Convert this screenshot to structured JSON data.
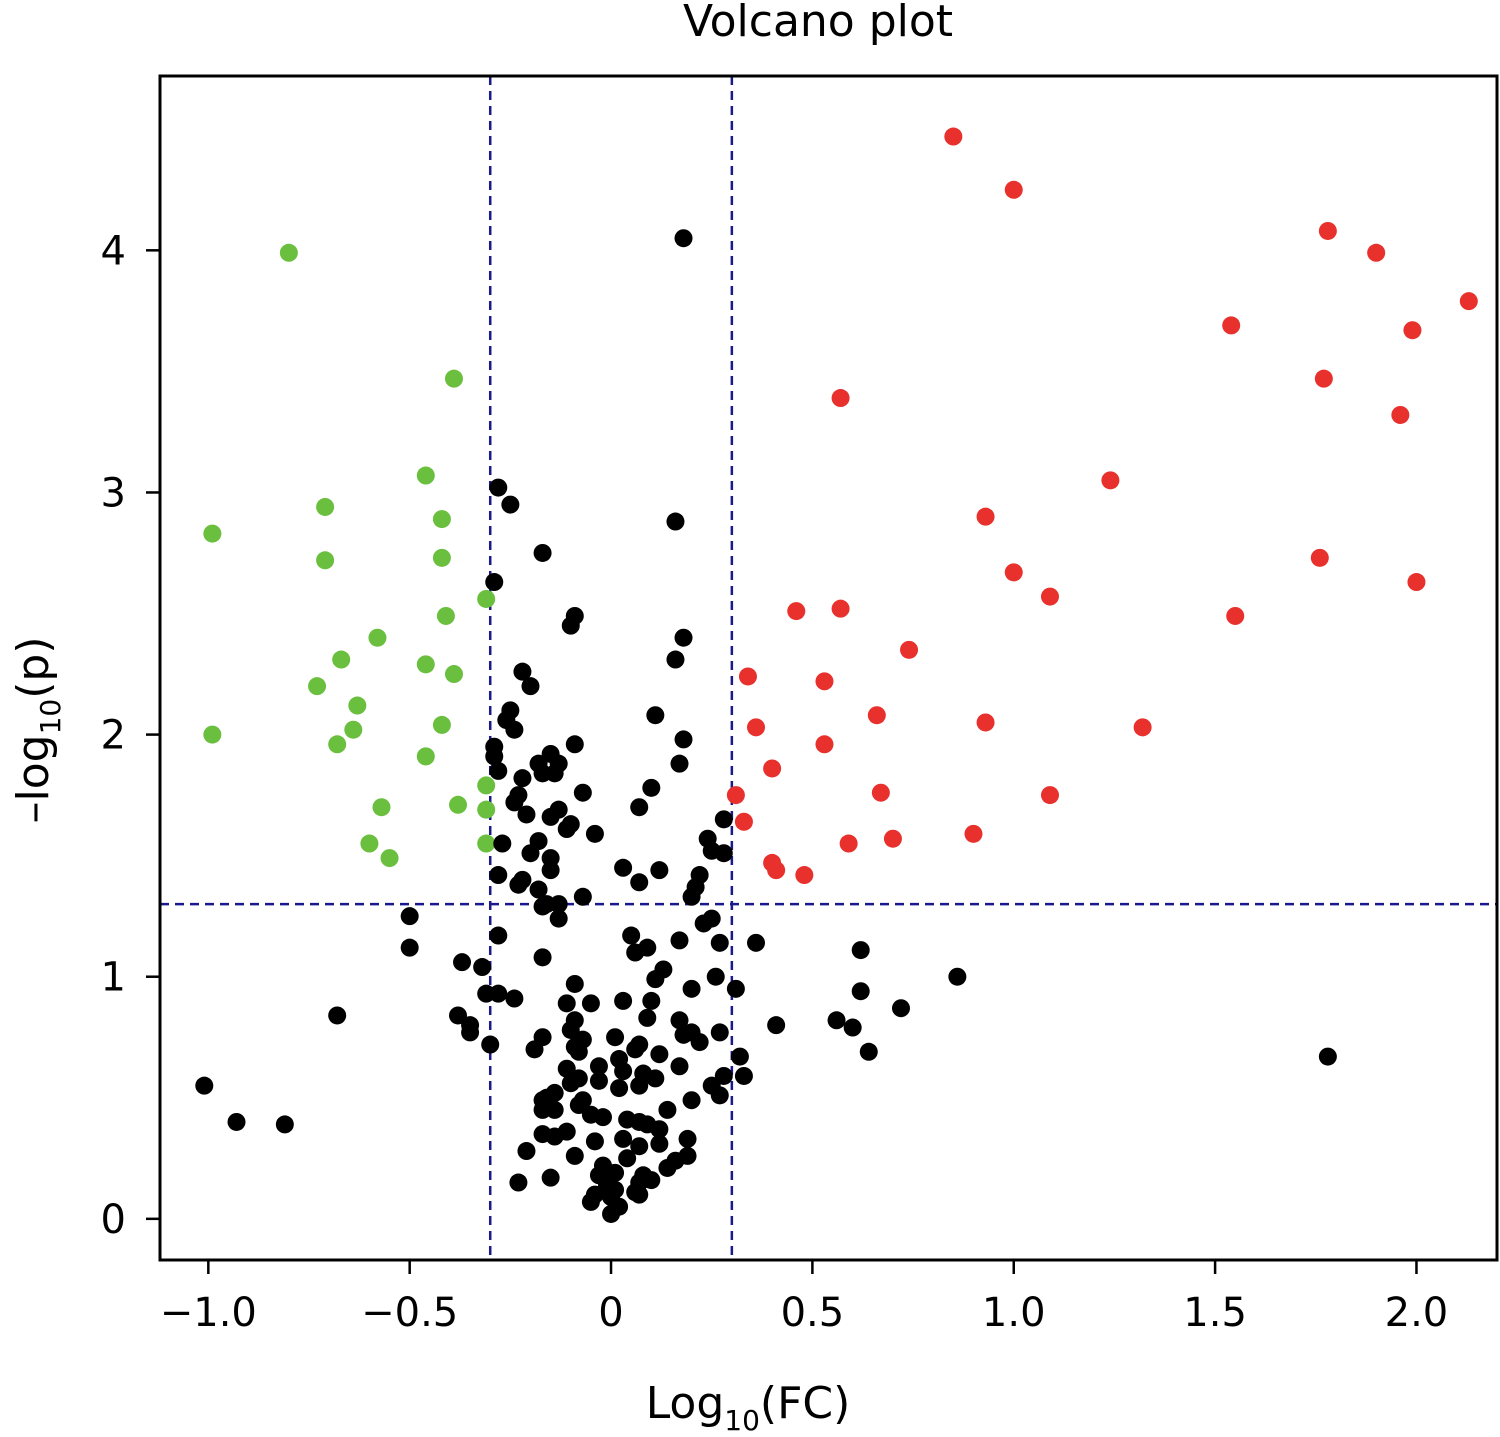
{
  "chart_data": {
    "type": "scatter",
    "title": "Volcano plot",
    "xlabel": {
      "prefix": "Log",
      "sub": "10",
      "suffix": "(FC)"
    },
    "ylabel": {
      "prefix": "–log",
      "sub": "10",
      "suffix": "(p)"
    },
    "xlim": [
      -1.12,
      2.2
    ],
    "ylim": [
      -0.17,
      4.72
    ],
    "xticks": [
      -1.0,
      -0.5,
      0,
      0.5,
      1.0,
      1.5,
      2.0
    ],
    "xtick_labels": [
      "−1.0",
      "−0.5",
      "0",
      "0.5",
      "1.0",
      "1.5",
      "2.0"
    ],
    "yticks": [
      0,
      1,
      2,
      3,
      4
    ],
    "ytick_labels": [
      "0",
      "1",
      "2",
      "3",
      "4"
    ],
    "grid": false,
    "thresholds": {
      "x": [
        -0.3,
        0.3
      ],
      "y": 1.3,
      "color": "#1a1a8c"
    },
    "series": [
      {
        "color": "#6abf3f",
        "points": [
          [
            -0.8,
            3.99
          ],
          [
            -0.39,
            3.47
          ],
          [
            -0.46,
            3.07
          ],
          [
            -0.99,
            2.83
          ],
          [
            -0.71,
            2.94
          ],
          [
            -0.42,
            2.89
          ],
          [
            -0.71,
            2.72
          ],
          [
            -0.42,
            2.73
          ],
          [
            -0.31,
            2.56
          ],
          [
            -0.41,
            2.49
          ],
          [
            -0.58,
            2.4
          ],
          [
            -0.67,
            2.31
          ],
          [
            -0.46,
            2.29
          ],
          [
            -0.39,
            2.25
          ],
          [
            -0.73,
            2.2
          ],
          [
            -0.63,
            2.12
          ],
          [
            -0.64,
            2.02
          ],
          [
            -0.42,
            2.04
          ],
          [
            -0.99,
            2.0
          ],
          [
            -0.68,
            1.96
          ],
          [
            -0.46,
            1.91
          ],
          [
            -0.31,
            1.79
          ],
          [
            -0.38,
            1.71
          ],
          [
            -0.31,
            1.69
          ],
          [
            -0.57,
            1.7
          ],
          [
            -0.6,
            1.55
          ],
          [
            -0.31,
            1.55
          ],
          [
            -0.55,
            1.49
          ]
        ]
      },
      {
        "color": "#e8302c",
        "points": [
          [
            0.85,
            4.47
          ],
          [
            1.0,
            4.25
          ],
          [
            1.78,
            4.08
          ],
          [
            1.9,
            3.99
          ],
          [
            2.13,
            3.79
          ],
          [
            1.54,
            3.69
          ],
          [
            1.99,
            3.67
          ],
          [
            1.77,
            3.47
          ],
          [
            0.57,
            3.39
          ],
          [
            1.96,
            3.32
          ],
          [
            1.24,
            3.05
          ],
          [
            0.93,
            2.9
          ],
          [
            1.76,
            2.73
          ],
          [
            1.0,
            2.67
          ],
          [
            2.0,
            2.63
          ],
          [
            1.09,
            2.57
          ],
          [
            0.46,
            2.51
          ],
          [
            0.57,
            2.52
          ],
          [
            1.55,
            2.49
          ],
          [
            0.74,
            2.35
          ],
          [
            0.34,
            2.24
          ],
          [
            0.53,
            2.22
          ],
          [
            0.66,
            2.08
          ],
          [
            0.36,
            2.03
          ],
          [
            0.93,
            2.05
          ],
          [
            1.32,
            2.03
          ],
          [
            0.53,
            1.96
          ],
          [
            0.4,
            1.86
          ],
          [
            0.31,
            1.75
          ],
          [
            0.67,
            1.76
          ],
          [
            1.09,
            1.75
          ],
          [
            0.33,
            1.64
          ],
          [
            0.9,
            1.59
          ],
          [
            0.7,
            1.57
          ],
          [
            0.59,
            1.55
          ],
          [
            0.4,
            1.47
          ],
          [
            0.41,
            1.44
          ],
          [
            0.48,
            1.42
          ]
        ]
      },
      {
        "color": "#000000",
        "points": [
          [
            0.18,
            4.05
          ],
          [
            -0.28,
            3.02
          ],
          [
            -0.25,
            2.95
          ],
          [
            0.16,
            2.88
          ],
          [
            -0.17,
            2.75
          ],
          [
            -0.29,
            2.63
          ],
          [
            -0.09,
            2.49
          ],
          [
            -0.1,
            2.45
          ],
          [
            0.18,
            2.4
          ],
          [
            0.16,
            2.31
          ],
          [
            -0.22,
            2.26
          ],
          [
            -0.2,
            2.2
          ],
          [
            -0.25,
            2.1
          ],
          [
            -0.26,
            2.06
          ],
          [
            0.11,
            2.08
          ],
          [
            -0.24,
            2.02
          ],
          [
            0.18,
            1.98
          ],
          [
            -0.09,
            1.96
          ],
          [
            -0.29,
            1.95
          ],
          [
            -0.29,
            1.91
          ],
          [
            -0.15,
            1.92
          ],
          [
            0.17,
            1.88
          ],
          [
            -0.18,
            1.88
          ],
          [
            -0.13,
            1.88
          ],
          [
            -0.17,
            1.84
          ],
          [
            -0.14,
            1.84
          ],
          [
            -0.28,
            1.85
          ],
          [
            -0.22,
            1.82
          ],
          [
            0.1,
            1.78
          ],
          [
            -0.07,
            1.76
          ],
          [
            -0.23,
            1.75
          ],
          [
            -0.24,
            1.72
          ],
          [
            0.07,
            1.7
          ],
          [
            -0.13,
            1.69
          ],
          [
            -0.15,
            1.66
          ],
          [
            0.28,
            1.65
          ],
          [
            -0.1,
            1.63
          ],
          [
            -0.21,
            1.67
          ],
          [
            -0.11,
            1.61
          ],
          [
            0.24,
            1.57
          ],
          [
            -0.04,
            1.59
          ],
          [
            -0.18,
            1.56
          ],
          [
            -0.27,
            1.55
          ],
          [
            -0.2,
            1.51
          ],
          [
            0.25,
            1.52
          ],
          [
            0.28,
            1.51
          ],
          [
            -0.15,
            1.49
          ],
          [
            -0.15,
            1.44
          ],
          [
            0.03,
            1.45
          ],
          [
            0.12,
            1.44
          ],
          [
            -0.28,
            1.42
          ],
          [
            0.22,
            1.42
          ],
          [
            -0.23,
            1.38
          ],
          [
            -0.22,
            1.4
          ],
          [
            0.07,
            1.39
          ],
          [
            0.21,
            1.37
          ],
          [
            -0.18,
            1.36
          ],
          [
            -0.07,
            1.33
          ],
          [
            0.2,
            1.33
          ],
          [
            -0.16,
            1.3
          ],
          [
            -0.17,
            1.29
          ],
          [
            -0.13,
            1.3
          ],
          [
            0.25,
            1.24
          ],
          [
            0.23,
            1.22
          ],
          [
            -0.13,
            1.24
          ],
          [
            -0.5,
            1.25
          ],
          [
            0.05,
            1.17
          ],
          [
            -0.28,
            1.17
          ],
          [
            0.17,
            1.15
          ],
          [
            0.27,
            1.14
          ],
          [
            0.36,
            1.14
          ],
          [
            0.09,
            1.12
          ],
          [
            -0.5,
            1.12
          ],
          [
            0.06,
            1.1
          ],
          [
            0.62,
            1.11
          ],
          [
            -0.17,
            1.08
          ],
          [
            -0.37,
            1.06
          ],
          [
            -0.32,
            1.04
          ],
          [
            0.13,
            1.03
          ],
          [
            0.26,
            1.0
          ],
          [
            0.11,
            0.99
          ],
          [
            0.86,
            1.0
          ],
          [
            -0.09,
            0.97
          ],
          [
            0.2,
            0.95
          ],
          [
            0.31,
            0.95
          ],
          [
            0.62,
            0.94
          ],
          [
            -0.31,
            0.93
          ],
          [
            -0.28,
            0.93
          ],
          [
            -0.24,
            0.91
          ],
          [
            0.03,
            0.9
          ],
          [
            0.1,
            0.9
          ],
          [
            -0.05,
            0.89
          ],
          [
            -0.11,
            0.89
          ],
          [
            0.72,
            0.87
          ],
          [
            -0.68,
            0.84
          ],
          [
            -0.38,
            0.84
          ],
          [
            0.09,
            0.83
          ],
          [
            0.17,
            0.82
          ],
          [
            0.56,
            0.82
          ],
          [
            -0.09,
            0.82
          ],
          [
            0.41,
            0.8
          ],
          [
            0.6,
            0.79
          ],
          [
            -0.35,
            0.8
          ],
          [
            -0.1,
            0.78
          ],
          [
            0.2,
            0.77
          ],
          [
            0.27,
            0.77
          ],
          [
            0.18,
            0.76
          ],
          [
            -0.17,
            0.75
          ],
          [
            0.01,
            0.75
          ],
          [
            -0.35,
            0.77
          ],
          [
            0.22,
            0.73
          ],
          [
            -0.07,
            0.74
          ],
          [
            0.07,
            0.72
          ],
          [
            -0.3,
            0.72
          ],
          [
            0.06,
            0.7
          ],
          [
            -0.09,
            0.71
          ],
          [
            -0.19,
            0.7
          ],
          [
            0.12,
            0.68
          ],
          [
            0.64,
            0.69
          ],
          [
            -0.08,
            0.69
          ],
          [
            1.78,
            0.67
          ],
          [
            0.32,
            0.67
          ],
          [
            0.02,
            0.66
          ],
          [
            -0.03,
            0.63
          ],
          [
            0.17,
            0.63
          ],
          [
            0.03,
            0.61
          ],
          [
            -0.11,
            0.62
          ],
          [
            0.08,
            0.6
          ],
          [
            0.28,
            0.59
          ],
          [
            0.33,
            0.59
          ],
          [
            -0.08,
            0.58
          ],
          [
            0.11,
            0.58
          ],
          [
            -0.03,
            0.57
          ],
          [
            -0.1,
            0.56
          ],
          [
            0.07,
            0.55
          ],
          [
            0.25,
            0.55
          ],
          [
            0.02,
            0.54
          ],
          [
            -1.01,
            0.55
          ],
          [
            -0.14,
            0.52
          ],
          [
            -0.16,
            0.5
          ],
          [
            0.27,
            0.51
          ],
          [
            -0.07,
            0.49
          ],
          [
            -0.17,
            0.49
          ],
          [
            0.2,
            0.49
          ],
          [
            -0.08,
            0.47
          ],
          [
            -0.17,
            0.45
          ],
          [
            -0.14,
            0.45
          ],
          [
            0.14,
            0.45
          ],
          [
            -0.05,
            0.43
          ],
          [
            -0.02,
            0.42
          ],
          [
            0.04,
            0.41
          ],
          [
            0.07,
            0.4
          ],
          [
            0.09,
            0.39
          ],
          [
            -0.93,
            0.4
          ],
          [
            -0.81,
            0.39
          ],
          [
            0.12,
            0.37
          ],
          [
            -0.11,
            0.36
          ],
          [
            -0.17,
            0.35
          ],
          [
            -0.14,
            0.34
          ],
          [
            0.03,
            0.33
          ],
          [
            -0.04,
            0.32
          ],
          [
            0.19,
            0.33
          ],
          [
            0.07,
            0.3
          ],
          [
            0.12,
            0.31
          ],
          [
            -0.21,
            0.28
          ],
          [
            0.19,
            0.26
          ],
          [
            -0.09,
            0.26
          ],
          [
            0.04,
            0.25
          ],
          [
            0.16,
            0.24
          ],
          [
            -0.02,
            0.22
          ],
          [
            0.14,
            0.21
          ],
          [
            0.01,
            0.19
          ],
          [
            -0.03,
            0.18
          ],
          [
            0.08,
            0.18
          ],
          [
            0.1,
            0.16
          ],
          [
            -0.15,
            0.17
          ],
          [
            -0.23,
            0.15
          ],
          [
            0.07,
            0.15
          ],
          [
            -0.01,
            0.14
          ],
          [
            0.01,
            0.12
          ],
          [
            0.06,
            0.11
          ],
          [
            -0.04,
            0.1
          ],
          [
            0.0,
            0.09
          ],
          [
            0.07,
            0.1
          ],
          [
            -0.05,
            0.07
          ],
          [
            0.02,
            0.05
          ],
          [
            0.0,
            0.02
          ]
        ]
      }
    ]
  }
}
